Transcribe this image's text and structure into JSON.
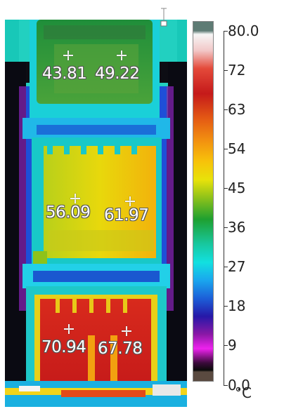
{
  "thermal_image": {
    "readings": [
      {
        "id": "top-left",
        "value": "43.81"
      },
      {
        "id": "top-right",
        "value": "49.22"
      },
      {
        "id": "middle-left",
        "value": "56.09"
      },
      {
        "id": "middle-right",
        "value": "61.97"
      },
      {
        "id": "bottom-left",
        "value": "70.94"
      },
      {
        "id": "bottom-right",
        "value": "67.78"
      }
    ]
  },
  "color_scale": {
    "max": "80.0",
    "ticks": [
      "72",
      "63",
      "54",
      "45",
      "36",
      "27",
      "18",
      "9"
    ],
    "min": "0.0",
    "unit": "°C",
    "colors": {
      "top_cap": "#5e7b74",
      "hot": "#c51a1a",
      "warm": "#e8e20a",
      "mid": "#1ea030",
      "cool": "#12e0e0",
      "cold": "#2618a8",
      "coldest": "#0a0a0a",
      "bottom_cap": "#5a4a40"
    }
  }
}
